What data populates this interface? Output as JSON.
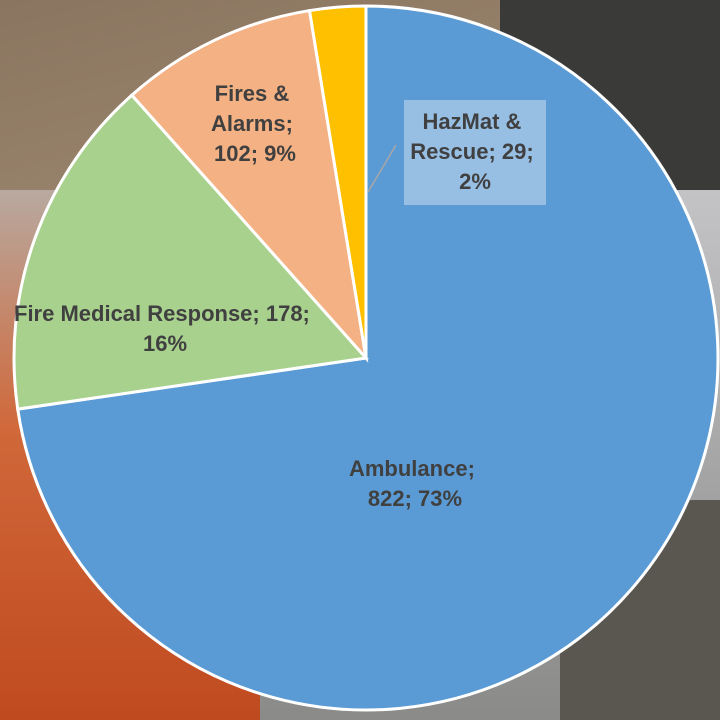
{
  "chart_data": {
    "type": "pie",
    "values": [
      822,
      178,
      102,
      29
    ],
    "value_labels": [
      "Ambulance; 822; 73%",
      "Fire Medical Response; 178; 16%",
      "Fires & Alarms; 102; 9%",
      "HazMat & Rescue; 29; 2%"
    ],
    "colors": [
      "#5b9bd5",
      "#a9d18e",
      "#f4b183",
      "#ffc000"
    ]
  }
}
